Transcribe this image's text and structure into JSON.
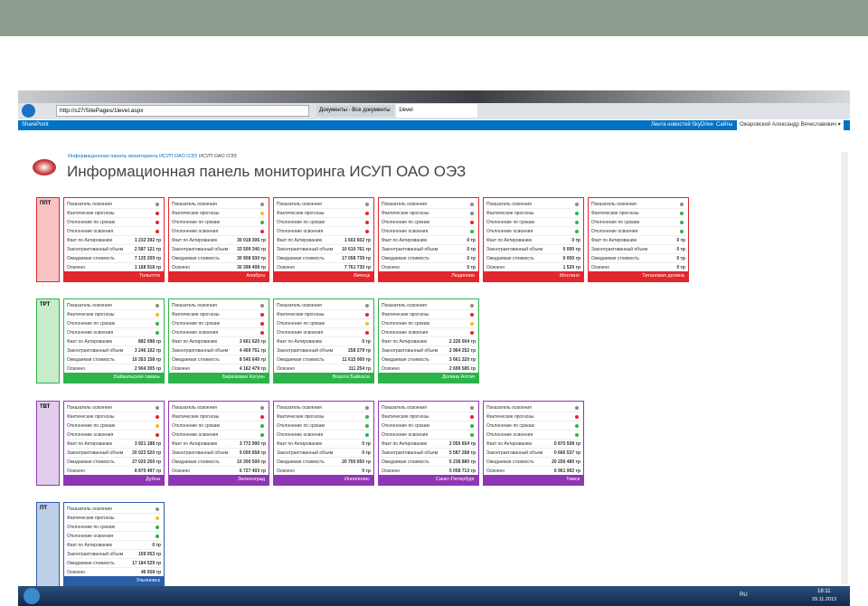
{
  "browser": {
    "url": "http://s27/SitePages/1level.aspx",
    "tabs": [
      "Документы - Все документы",
      "1level"
    ]
  },
  "suite_bar": {
    "brand": "SharePoint",
    "links": [
      "Лента новостей",
      "SkyDrive",
      "Сайты",
      "Ожаровский Александр Вячеславович ▾",
      "?"
    ]
  },
  "breadcrumbs": [
    "Информационная панель мониторинга ИСУП ОАО ОЭЗ",
    "ИСУП ОАО ОЭЗ"
  ],
  "page_title": "Информационная панель мониторинга ИСУП ОАО ОЭЗ",
  "row_labels": [
    "Показатель освоения",
    "Фактические прогнозы",
    "Отклонение по срокам",
    "Отклонение освоения",
    "Факт по Актированию",
    "Законтрактованный объем",
    "Ожидаемая стоимость",
    "Освоено"
  ],
  "groups": [
    {
      "label": "ППТ",
      "color": "#e2262c",
      "fill": "#f8c3c3",
      "cards": [
        {
          "name": "Тольятти",
          "status": [
            "#8c8c8c",
            "#e2262c",
            "#e2262c",
            "#e2262c"
          ],
          "values": [
            "1 232 392 тр",
            "2 587 121 тр",
            "7 135 209 тр",
            "1 168 918 тр"
          ]
        },
        {
          "name": "Алабуга",
          "status": [
            "#8c8c8c",
            "#f0c020",
            "#2db34a",
            "#e2262c"
          ],
          "values": [
            "30 018 306 тр",
            "33 509 340 тр",
            "30 908 930 тр",
            "30 398 408 тр"
          ]
        },
        {
          "name": "Липецк",
          "status": [
            "#8c8c8c",
            "#e2262c",
            "#e2262c",
            "#e2262c"
          ],
          "values": [
            "1 602 602 тр",
            "10 610 761 тр",
            "17 058 739 тр",
            "7 761 730 тр"
          ]
        },
        {
          "name": "Людиново",
          "status": [
            "#8c8c8c",
            "#8c8c8c",
            "#e2262c",
            "#2db34a"
          ],
          "values": [
            "0 тр",
            "0 тр",
            "0 тр",
            "0 тр"
          ]
        },
        {
          "name": "Моглино",
          "status": [
            "#8c8c8c",
            "#2db34a",
            "#2db34a",
            "#2db34a"
          ],
          "values": [
            "0 тр",
            "0 000 тр",
            "0 000 тр",
            "1 520 тр"
          ]
        },
        {
          "name": "Титановая долина",
          "status": [
            "#8c8c8c",
            "#2db34a",
            "#2db34a",
            "#2db34a"
          ],
          "values": [
            "0 тр",
            "0 тр",
            "0 тр",
            "0 тр"
          ]
        }
      ]
    },
    {
      "label": "ТРТ",
      "color": "#2db34a",
      "fill": "#c7ebcb",
      "cards": [
        {
          "name": "Байкальская гавань",
          "status": [
            "#8c8c8c",
            "#f0c020",
            "#2db34a",
            "#2db34a"
          ],
          "values": [
            "882 098 тр",
            "3 246 102 тр",
            "10 353 158 тр",
            "2 904 305 тр"
          ]
        },
        {
          "name": "Бирюзовая Катунь",
          "status": [
            "#8c8c8c",
            "#e2262c",
            "#e2262c",
            "#e2262c"
          ],
          "values": [
            "3 661 620 тр",
            "4 459 751 тр",
            "8 545 640 тр",
            "4 162 479 тр"
          ]
        },
        {
          "name": "Ворота Байкала",
          "status": [
            "#8c8c8c",
            "#e2262c",
            "#f0c020",
            "#e2262c"
          ],
          "values": [
            "0 тр",
            "258 279 тр",
            "11 615 000 тр",
            "111 254 тр"
          ]
        },
        {
          "name": "Долина Алтая",
          "status": [
            "#8c8c8c",
            "#e2262c",
            "#f0c020",
            "#e2262c"
          ],
          "values": [
            "2 226 004 тр",
            "2 964 252 тр",
            "3 661 320 тр",
            "2 699 585 тр"
          ]
        }
      ]
    },
    {
      "label": "ТВТ",
      "color": "#8e36b3",
      "fill": "#e1cdec",
      "cards": [
        {
          "name": "Дубна",
          "status": [
            "#8c8c8c",
            "#e2262c",
            "#f0c020",
            "#e2262c"
          ],
          "values": [
            "3 921 188 тр",
            "20 023 520 тр",
            "27 020 250 тр",
            "8 870 497 тр"
          ]
        },
        {
          "name": "Зеленоград",
          "status": [
            "#8c8c8c",
            "#e2262c",
            "#2db34a",
            "#2db34a"
          ],
          "values": [
            "3 772 990 тр",
            "9 000 658 тр",
            "10 300 500 тр",
            "6 727 403 тр"
          ]
        },
        {
          "name": "Иннополис",
          "status": [
            "#8c8c8c",
            "#2db34a",
            "#2db34a",
            "#2db34a"
          ],
          "values": [
            "0 тр",
            "0 тр",
            "20 700 650 тр",
            "0 тр"
          ]
        },
        {
          "name": "Санкт-Петербург",
          "status": [
            "#8c8c8c",
            "#e2262c",
            "#2db34a",
            "#2db34a"
          ],
          "values": [
            "2 050 654 тр",
            "5 587 268 тр",
            "5 238 880 тр",
            "5 058 713 тр"
          ]
        },
        {
          "name": "Томск",
          "status": [
            "#8c8c8c",
            "#e2262c",
            "#2db34a",
            "#2db34a"
          ],
          "values": [
            "0 870 508 тр",
            "0 666 537 тр",
            "20 256 480 тр",
            "6 961 992 тр"
          ]
        }
      ]
    },
    {
      "label": "ПТ",
      "color": "#2b5ea8",
      "fill": "#bccfe7",
      "cards": [
        {
          "name": "Ульяновск",
          "status": [
            "#8c8c8c",
            "#f0c020",
            "#2db34a",
            "#2db34a"
          ],
          "values": [
            "0 тр",
            "159 053 тр",
            "17 184 529 тр",
            "46 558 тр"
          ]
        }
      ]
    }
  ],
  "taskbar": {
    "lang": "RU",
    "time": "18:11",
    "date": "29.11.2013"
  }
}
